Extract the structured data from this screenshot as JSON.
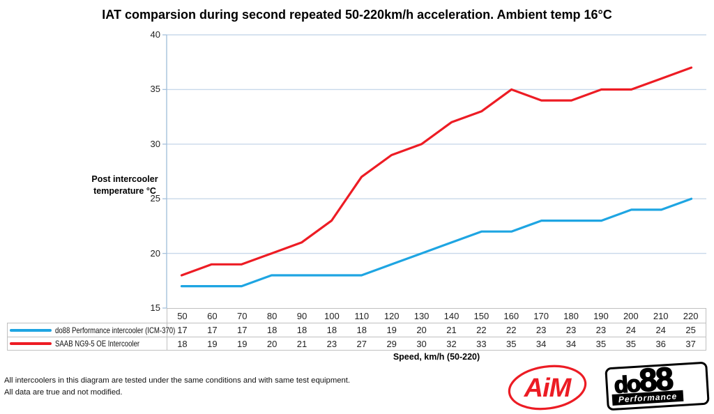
{
  "chart_data": {
    "type": "line",
    "title": "IAT comparsion during second repeated 50-220km/h acceleration. Ambient temp 16°C",
    "categories": [
      50,
      60,
      70,
      80,
      90,
      100,
      110,
      120,
      130,
      140,
      150,
      160,
      170,
      180,
      190,
      200,
      210,
      220
    ],
    "series": [
      {
        "name": "do88 Performance intercooler (ICM-370)",
        "color": "#1EA5E2",
        "values": [
          17,
          17,
          17,
          18,
          18,
          18,
          18,
          19,
          20,
          21,
          22,
          22,
          23,
          23,
          23,
          24,
          24,
          25
        ]
      },
      {
        "name": "SAAB NG9-5 OE Intercooler",
        "color": "#ED1C24",
        "values": [
          18,
          19,
          19,
          20,
          21,
          23,
          27,
          29,
          30,
          32,
          33,
          35,
          34,
          34,
          35,
          35,
          36,
          37
        ]
      }
    ],
    "ylabel": "Post intercooler temperature °C",
    "xlabel": "Speed, km/h (50-220)",
    "ylim": [
      15,
      40
    ],
    "ytick_step": 5,
    "grid": "horizontal",
    "legend_position": "table-left"
  },
  "colors": {
    "grid": "#C8D8EA",
    "axis": "#A6C1DC",
    "table_border": "#C0C0C0",
    "series_blue": "#1EA5E2",
    "series_red": "#ED1C24",
    "logo_red": "#EC1C24"
  },
  "footer": {
    "line1": "All intercoolers in this diagram are tested under the same conditions and with same test equipment.",
    "line2": "All data are true and not modified."
  },
  "logos": {
    "aim_text": "AiM",
    "do88_text_part1": "do",
    "do88_text_part2": "88",
    "do88_sub": "Performance"
  }
}
